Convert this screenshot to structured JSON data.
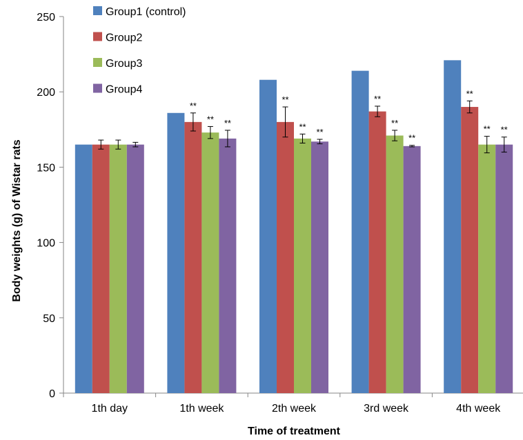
{
  "chart_data": {
    "type": "bar",
    "xlabel": "Time of treatment",
    "ylabel": "Body weights (g) of Wistar rats",
    "ylim": [
      0,
      250
    ],
    "yticks": [
      0,
      50,
      100,
      150,
      200,
      250
    ],
    "grid": false,
    "legend_position": "top-left",
    "categories": [
      "1th day",
      "1th week",
      "2th week",
      "3rd week",
      "4th week"
    ],
    "series": [
      {
        "name": "Group1 (control)",
        "color": "#4f81bd",
        "values": [
          165,
          186,
          208,
          214,
          221
        ],
        "errors": [
          0,
          0,
          0,
          0,
          0
        ],
        "sig": [
          "",
          "",
          "",
          "",
          ""
        ]
      },
      {
        "name": "Group2",
        "color": "#c0504d",
        "values": [
          165,
          180,
          180,
          187,
          190
        ],
        "errors": [
          3,
          6,
          10,
          3.5,
          4
        ],
        "sig": [
          "",
          "**",
          "**",
          "**",
          "**"
        ]
      },
      {
        "name": "Group3",
        "color": "#9bbb59",
        "values": [
          165,
          173,
          169,
          171,
          165
        ],
        "errors": [
          3,
          4,
          3,
          3.5,
          5.5
        ],
        "sig": [
          "",
          "**",
          "**",
          "**",
          "**"
        ]
      },
      {
        "name": "Group4",
        "color": "#8064a2",
        "values": [
          165,
          169,
          167,
          164,
          165
        ],
        "errors": [
          1.5,
          5.5,
          1.5,
          0.5,
          5
        ],
        "sig": [
          "",
          "**",
          "**",
          "**",
          "**"
        ]
      }
    ]
  }
}
